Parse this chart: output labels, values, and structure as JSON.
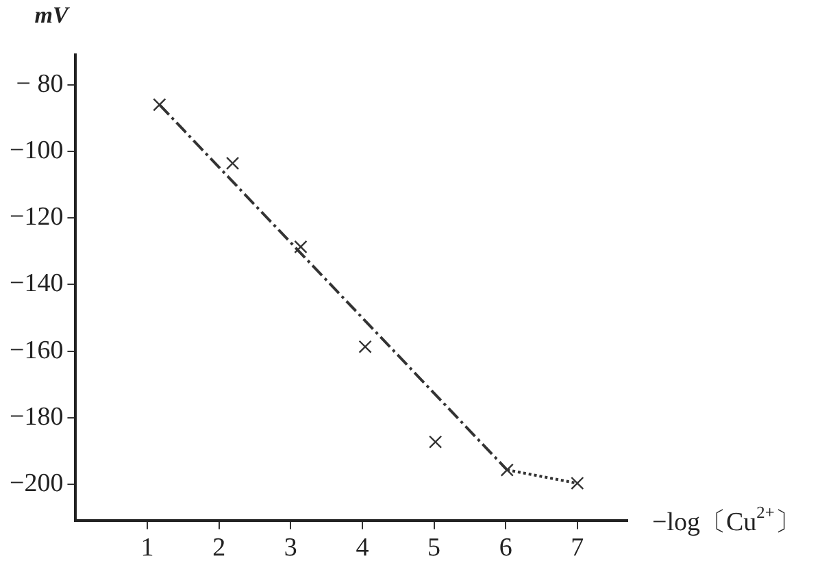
{
  "chart_data": {
    "type": "scatter",
    "xlabel": "−log〔Cu$^{2+}$〕",
    "ylabel": "mV",
    "x": [
      1.17,
      2.19,
      3.14,
      4.04,
      5.02,
      6.02,
      7
    ],
    "series": [
      {
        "type": "scatter",
        "color": "#333333",
        "marker": "cross",
        "values": [
          -86,
          -103.6,
          -128.7,
          -158.7,
          -187.3,
          -195.7,
          -199.7
        ]
      },
      {
        "type": "line",
        "color": "#333333",
        "line_style": "dashed",
        "marker": "none",
        "x": [
          1.17,
          6.02
        ],
        "values": [
          -86,
          -195.7
        ]
      },
      {
        "type": "line",
        "color": "#333333",
        "line_style": "dotted",
        "marker": "none",
        "x": [
          6.02,
          7
        ],
        "values": [
          -195.7,
          -199.7
        ]
      }
    ],
    "xlim": [
      0,
      7.7
    ],
    "ylim": [
      -211,
      -71
    ],
    "xticks": [
      1,
      2,
      3,
      4,
      5,
      6,
      7
    ],
    "yticks": [
      {
        "value": -80,
        "label": "− 80"
      },
      {
        "value": -100,
        "label": "−100"
      },
      {
        "value": -120,
        "label": "−120"
      },
      {
        "value": -140,
        "label": "−140"
      },
      {
        "value": -160,
        "label": "−160"
      },
      {
        "value": -180,
        "label": "−180"
      },
      {
        "value": -200,
        "label": "−200"
      }
    ],
    "grid": false,
    "legend": false
  }
}
